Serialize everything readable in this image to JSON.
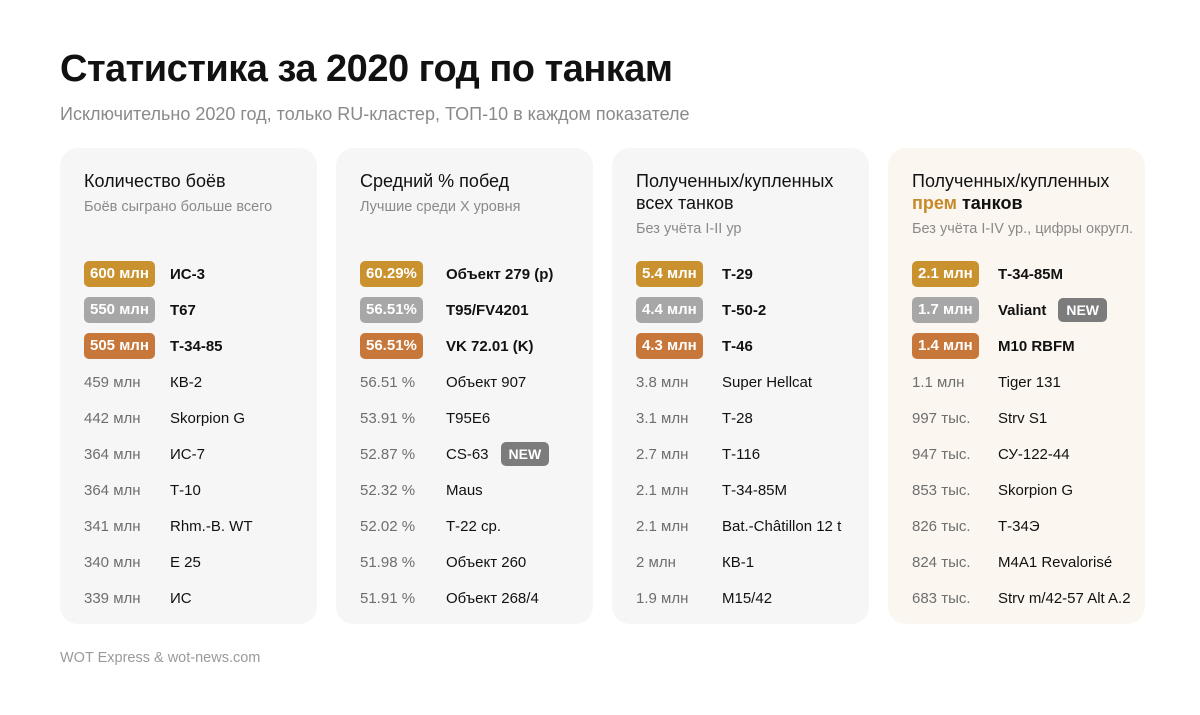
{
  "title": "Статистика за 2020 год по танкам",
  "subtitle": "Исключительно 2020 год, только RU-кластер, ТОП-10 в каждом показателе",
  "footer": "WOT Express & wot-news.com",
  "colors": {
    "gold": "#c9922f",
    "silver": "#a7a7a7",
    "bronze": "#c7773a",
    "accent": "#c48a2c",
    "badge": "#7c7c7c"
  },
  "cards": [
    {
      "title_line1": "Количество боёв",
      "title_line2": "",
      "subtitle": "Боёв сыграно больше всего",
      "rows": [
        {
          "value": "600 млн",
          "name": "ИС-3",
          "badge": ""
        },
        {
          "value": "550 млн",
          "name": "T67",
          "badge": ""
        },
        {
          "value": "505 млн",
          "name": "Т-34-85",
          "badge": ""
        },
        {
          "value": "459 млн",
          "name": "КВ-2",
          "badge": ""
        },
        {
          "value": "442 млн",
          "name": "Skorpion G",
          "badge": ""
        },
        {
          "value": "364 млн",
          "name": "ИС-7",
          "badge": ""
        },
        {
          "value": "364 млн",
          "name": "Т-10",
          "badge": ""
        },
        {
          "value": "341 млн",
          "name": "Rhm.-B. WT",
          "badge": ""
        },
        {
          "value": "340 млн",
          "name": "E 25",
          "badge": ""
        },
        {
          "value": "339 млн",
          "name": "ИС",
          "badge": ""
        }
      ]
    },
    {
      "title_line1": "Средний % побед",
      "title_line2": "",
      "subtitle": "Лучшие среди X уровня",
      "rows": [
        {
          "value": "60.29%",
          "name": "Объект 279 (р)",
          "badge": ""
        },
        {
          "value": "56.51%",
          "name": "T95/FV4201",
          "badge": ""
        },
        {
          "value": "56.51%",
          "name": "VK 72.01 (K)",
          "badge": ""
        },
        {
          "value": "56.51 %",
          "name": "Объект 907",
          "badge": ""
        },
        {
          "value": "53.91 %",
          "name": "T95E6",
          "badge": ""
        },
        {
          "value": "52.87 %",
          "name": "CS-63",
          "badge": "NEW"
        },
        {
          "value": "52.32 %",
          "name": "Maus",
          "badge": ""
        },
        {
          "value": "52.02 %",
          "name": "Т-22 ср.",
          "badge": ""
        },
        {
          "value": "51.98 %",
          "name": "Объект 260",
          "badge": ""
        },
        {
          "value": "51.91 %",
          "name": "Объект 268/4",
          "badge": ""
        }
      ]
    },
    {
      "title_line1": "Полученных/купленных",
      "title_line2": "всех танков",
      "subtitle": "Без учёта I-II ур",
      "rows": [
        {
          "value": "5.4 млн",
          "name": "Т-29",
          "badge": ""
        },
        {
          "value": "4.4 млн",
          "name": "Т-50-2",
          "badge": ""
        },
        {
          "value": "4.3 млн",
          "name": "Т-46",
          "badge": ""
        },
        {
          "value": "3.8 млн",
          "name": "Super Hellcat",
          "badge": ""
        },
        {
          "value": "3.1 млн",
          "name": "Т-28",
          "badge": ""
        },
        {
          "value": "2.7 млн",
          "name": "Т-116",
          "badge": ""
        },
        {
          "value": "2.1 млн",
          "name": "Т-34-85М",
          "badge": ""
        },
        {
          "value": "2.1 млн",
          "name": "Bat.-Châtillon 12 t",
          "badge": ""
        },
        {
          "value": "2 млн",
          "name": "КВ-1",
          "badge": ""
        },
        {
          "value": "1.9 млн",
          "name": "M15/42",
          "badge": ""
        }
      ]
    },
    {
      "title_line1": "Полученных/купленных",
      "title_accent": "прем",
      "title_bold": "танков",
      "subtitle": "Без учёта I-IV ур., цифры округл.",
      "rows": [
        {
          "value": "2.1 млн",
          "name": "Т-34-85М",
          "badge": ""
        },
        {
          "value": "1.7 млн",
          "name": "Valiant",
          "badge": "NEW"
        },
        {
          "value": "1.4 млн",
          "name": "M10 RBFM",
          "badge": ""
        },
        {
          "value": "1.1 млн",
          "name": "Tiger 131",
          "badge": ""
        },
        {
          "value": "997 тыс.",
          "name": "Strv S1",
          "badge": ""
        },
        {
          "value": "947 тыс.",
          "name": "СУ-122-44",
          "badge": ""
        },
        {
          "value": "853 тыс.",
          "name": "Skorpion G",
          "badge": ""
        },
        {
          "value": "826 тыс.",
          "name": "Т-34Э",
          "badge": ""
        },
        {
          "value": "824 тыс.",
          "name": "M4A1 Revalorisé",
          "badge": ""
        },
        {
          "value": "683 тыс.",
          "name": "Strv m/42-57 Alt A.2",
          "badge": ""
        }
      ]
    }
  ]
}
